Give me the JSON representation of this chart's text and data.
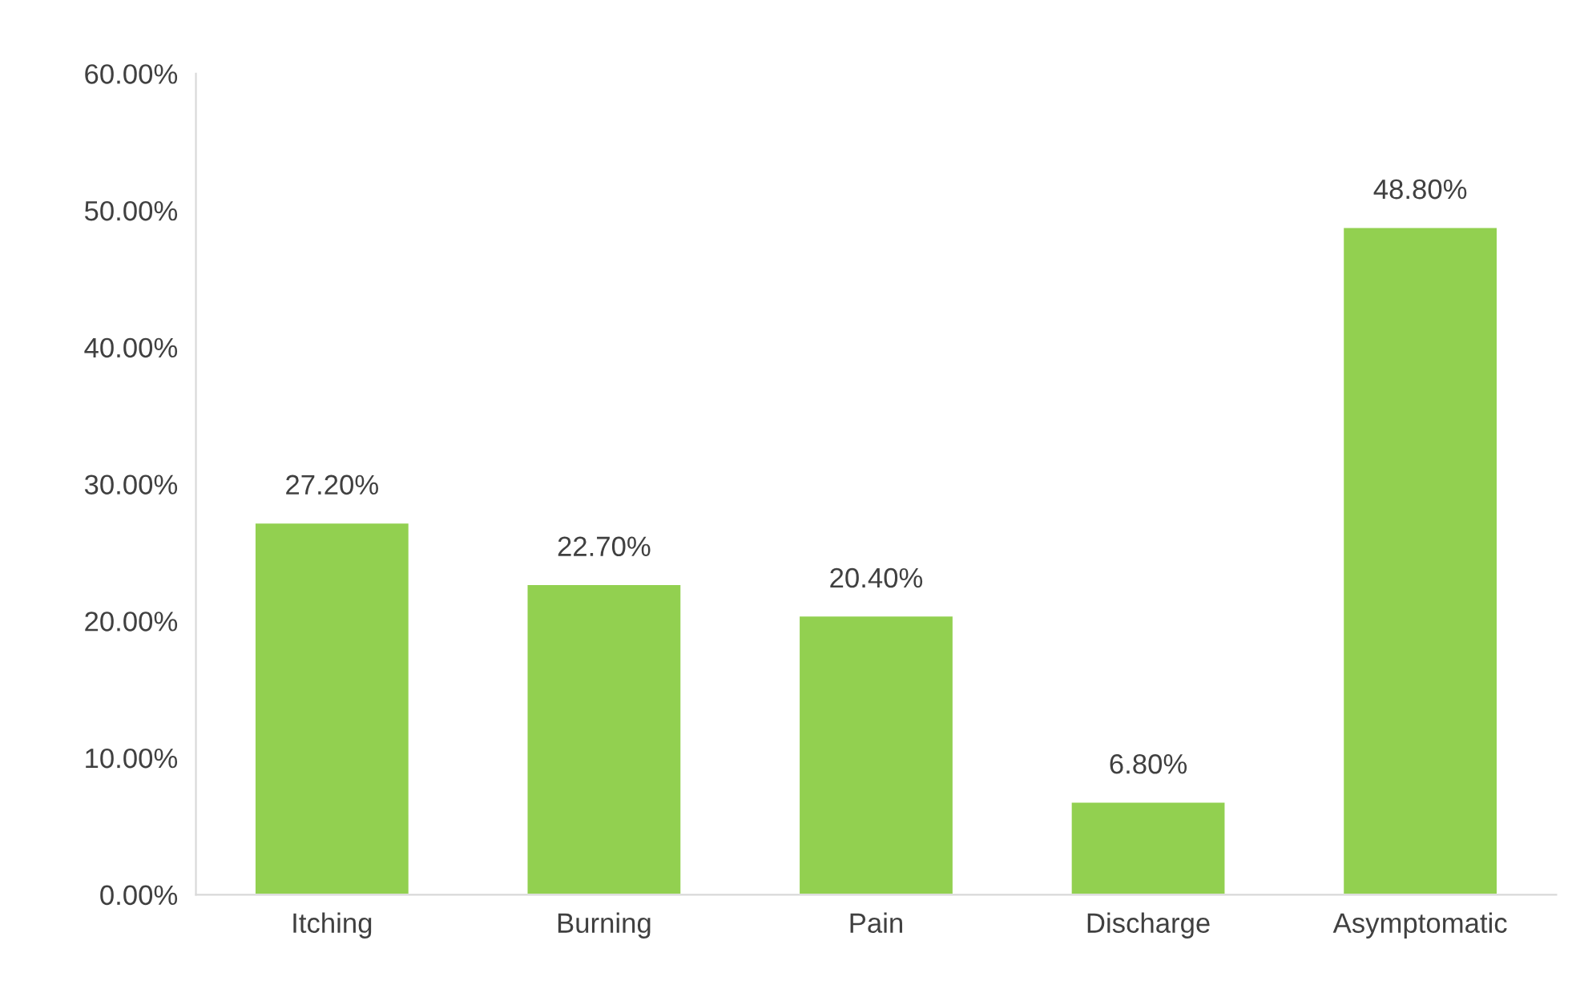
{
  "chart_data": {
    "type": "bar",
    "categories": [
      "Itching",
      "Burning",
      "Pain",
      "Discharge",
      "Asymptomatic"
    ],
    "values": [
      27.2,
      22.7,
      20.4,
      6.8,
      48.8
    ],
    "value_labels": [
      "27.20%",
      "22.70%",
      "20.40%",
      "6.80%",
      "48.80%"
    ],
    "color": "#92d050",
    "ylim": [
      0,
      60
    ],
    "yticks": [
      {
        "value": 0,
        "label": "0.00%"
      },
      {
        "value": 10,
        "label": "10.00%"
      },
      {
        "value": 20,
        "label": "20.00%"
      },
      {
        "value": 30,
        "label": "30.00%"
      },
      {
        "value": 40,
        "label": "40.00%"
      },
      {
        "value": 50,
        "label": "50.00%"
      },
      {
        "value": 60,
        "label": "60.00%"
      }
    ],
    "grid": false
  }
}
